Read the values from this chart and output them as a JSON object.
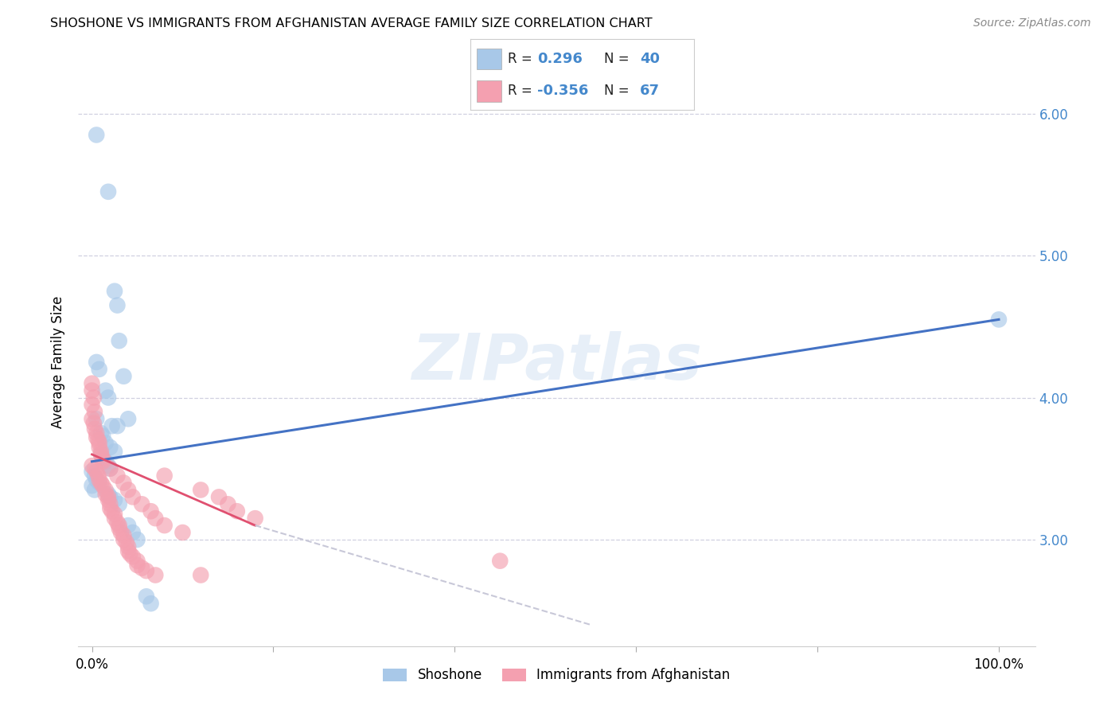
{
  "title": "SHOSHONE VS IMMIGRANTS FROM AFGHANISTAN AVERAGE FAMILY SIZE CORRELATION CHART",
  "source": "Source: ZipAtlas.com",
  "ylabel": "Average Family Size",
  "watermark": "ZIPatlas",
  "shoshone_color": "#a8c8e8",
  "afghanistan_color": "#f4a0b0",
  "line1_color": "#4472c4",
  "line2_color": "#e05070",
  "line2_dashed_color": "#c8c8d8",
  "background_color": "#ffffff",
  "grid_color": "#d0d0e0",
  "ylim": [
    2.25,
    6.25
  ],
  "xlim": [
    -0.015,
    1.04
  ],
  "yticks": [
    3.0,
    4.0,
    5.0,
    6.0
  ],
  "ytick_color": "#4488cc",
  "shoshone_points": [
    [
      0.005,
      5.85
    ],
    [
      0.018,
      5.45
    ],
    [
      0.025,
      4.75
    ],
    [
      0.028,
      4.65
    ],
    [
      0.03,
      4.4
    ],
    [
      0.005,
      4.25
    ],
    [
      0.008,
      4.2
    ],
    [
      0.035,
      4.15
    ],
    [
      0.015,
      4.05
    ],
    [
      0.018,
      4.0
    ],
    [
      0.04,
      3.85
    ],
    [
      0.005,
      3.85
    ],
    [
      0.022,
      3.8
    ],
    [
      0.028,
      3.8
    ],
    [
      0.01,
      3.75
    ],
    [
      0.012,
      3.73
    ],
    [
      0.015,
      3.68
    ],
    [
      0.02,
      3.65
    ],
    [
      0.025,
      3.62
    ],
    [
      0.01,
      3.6
    ],
    [
      0.012,
      3.57
    ],
    [
      0.015,
      3.55
    ],
    [
      0.018,
      3.52
    ],
    [
      0.02,
      3.5
    ],
    [
      0.0,
      3.48
    ],
    [
      0.003,
      3.45
    ],
    [
      0.005,
      3.42
    ],
    [
      0.008,
      3.4
    ],
    [
      0.0,
      3.38
    ],
    [
      0.003,
      3.35
    ],
    [
      0.018,
      3.32
    ],
    [
      0.02,
      3.3
    ],
    [
      0.025,
      3.28
    ],
    [
      0.03,
      3.25
    ],
    [
      0.04,
      3.1
    ],
    [
      0.045,
      3.05
    ],
    [
      0.05,
      3.0
    ],
    [
      0.06,
      2.6
    ],
    [
      0.065,
      2.55
    ],
    [
      1.0,
      4.55
    ]
  ],
  "afghanistan_points": [
    [
      0.0,
      4.1
    ],
    [
      0.0,
      4.05
    ],
    [
      0.002,
      4.0
    ],
    [
      0.0,
      3.95
    ],
    [
      0.003,
      3.9
    ],
    [
      0.0,
      3.85
    ],
    [
      0.002,
      3.82
    ],
    [
      0.003,
      3.78
    ],
    [
      0.005,
      3.75
    ],
    [
      0.005,
      3.72
    ],
    [
      0.007,
      3.7
    ],
    [
      0.008,
      3.68
    ],
    [
      0.008,
      3.65
    ],
    [
      0.01,
      3.62
    ],
    [
      0.01,
      3.6
    ],
    [
      0.012,
      3.57
    ],
    [
      0.012,
      3.55
    ],
    [
      0.0,
      3.52
    ],
    [
      0.003,
      3.5
    ],
    [
      0.005,
      3.48
    ],
    [
      0.007,
      3.45
    ],
    [
      0.008,
      3.42
    ],
    [
      0.01,
      3.4
    ],
    [
      0.012,
      3.38
    ],
    [
      0.015,
      3.35
    ],
    [
      0.015,
      3.32
    ],
    [
      0.018,
      3.3
    ],
    [
      0.018,
      3.28
    ],
    [
      0.02,
      3.25
    ],
    [
      0.02,
      3.22
    ],
    [
      0.022,
      3.2
    ],
    [
      0.025,
      3.18
    ],
    [
      0.025,
      3.15
    ],
    [
      0.028,
      3.12
    ],
    [
      0.03,
      3.1
    ],
    [
      0.03,
      3.08
    ],
    [
      0.032,
      3.05
    ],
    [
      0.035,
      3.03
    ],
    [
      0.035,
      3.0
    ],
    [
      0.038,
      2.98
    ],
    [
      0.04,
      2.95
    ],
    [
      0.04,
      2.92
    ],
    [
      0.042,
      2.9
    ],
    [
      0.045,
      2.88
    ],
    [
      0.05,
      2.85
    ],
    [
      0.05,
      2.82
    ],
    [
      0.055,
      2.8
    ],
    [
      0.06,
      2.78
    ],
    [
      0.07,
      2.75
    ],
    [
      0.08,
      3.45
    ],
    [
      0.12,
      3.35
    ],
    [
      0.12,
      2.75
    ],
    [
      0.14,
      3.3
    ],
    [
      0.15,
      3.25
    ],
    [
      0.16,
      3.2
    ],
    [
      0.18,
      3.15
    ],
    [
      0.02,
      3.5
    ],
    [
      0.028,
      3.45
    ],
    [
      0.035,
      3.4
    ],
    [
      0.04,
      3.35
    ],
    [
      0.045,
      3.3
    ],
    [
      0.055,
      3.25
    ],
    [
      0.065,
      3.2
    ],
    [
      0.07,
      3.15
    ],
    [
      0.08,
      3.1
    ],
    [
      0.1,
      3.05
    ],
    [
      0.45,
      2.85
    ]
  ],
  "title_fontsize": 11.5,
  "axis_fontsize": 11,
  "tick_fontsize": 11,
  "source_fontsize": 10
}
